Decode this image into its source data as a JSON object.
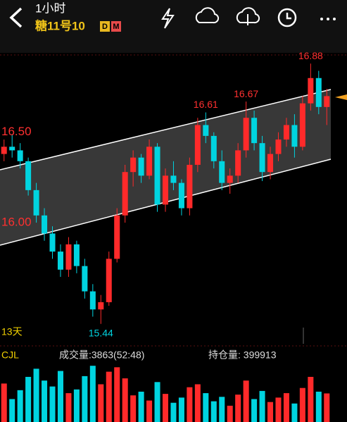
{
  "header": {
    "period": "1小时",
    "symbol": "糖11号10",
    "badges": [
      "D",
      "M"
    ]
  },
  "chart_data": {
    "type": "candlestick",
    "candles": [
      [
        16.38,
        16.46,
        16.34,
        16.42
      ],
      [
        16.42,
        16.49,
        16.36,
        16.4
      ],
      [
        16.4,
        16.44,
        16.3,
        16.34
      ],
      [
        16.34,
        16.36,
        16.15,
        16.18
      ],
      [
        16.18,
        16.22,
        16.0,
        16.04
      ],
      [
        16.04,
        16.08,
        15.9,
        15.94
      ],
      [
        15.94,
        15.98,
        15.8,
        15.84
      ],
      [
        15.84,
        15.88,
        15.7,
        15.74
      ],
      [
        15.74,
        15.92,
        15.7,
        15.88
      ],
      [
        15.88,
        15.9,
        15.72,
        15.76
      ],
      [
        15.76,
        15.8,
        15.58,
        15.62
      ],
      [
        15.62,
        15.66,
        15.48,
        15.52
      ],
      [
        15.52,
        15.6,
        15.44,
        15.56
      ],
      [
        15.56,
        15.84,
        15.54,
        15.8
      ],
      [
        15.8,
        16.08,
        15.78,
        16.04
      ],
      [
        16.04,
        16.32,
        16.0,
        16.28
      ],
      [
        16.28,
        16.4,
        16.2,
        16.36
      ],
      [
        16.36,
        16.38,
        16.22,
        16.26
      ],
      [
        16.26,
        16.46,
        16.24,
        16.42
      ],
      [
        16.42,
        16.44,
        16.06,
        16.1
      ],
      [
        16.1,
        16.3,
        16.06,
        16.26
      ],
      [
        16.26,
        16.34,
        16.18,
        16.22
      ],
      [
        16.22,
        16.24,
        16.04,
        16.08
      ],
      [
        16.08,
        16.36,
        16.04,
        16.32
      ],
      [
        16.32,
        16.58,
        16.28,
        16.54
      ],
      [
        16.54,
        16.61,
        16.44,
        16.48
      ],
      [
        16.48,
        16.5,
        16.3,
        16.34
      ],
      [
        16.34,
        16.4,
        16.18,
        16.22
      ],
      [
        16.22,
        16.3,
        16.16,
        16.26
      ],
      [
        16.26,
        16.44,
        16.22,
        16.4
      ],
      [
        16.4,
        16.67,
        16.36,
        16.58
      ],
      [
        16.58,
        16.62,
        16.4,
        16.44
      ],
      [
        16.44,
        16.48,
        16.23,
        16.28
      ],
      [
        16.28,
        16.42,
        16.24,
        16.38
      ],
      [
        16.38,
        16.5,
        16.34,
        16.46
      ],
      [
        16.46,
        16.58,
        16.42,
        16.54
      ],
      [
        16.54,
        16.6,
        16.36,
        16.42
      ],
      [
        16.42,
        16.7,
        16.4,
        16.66
      ],
      [
        16.66,
        16.88,
        16.62,
        16.8
      ],
      [
        16.8,
        16.84,
        16.6,
        16.64
      ],
      [
        16.64,
        16.74,
        16.54,
        16.7
      ]
    ],
    "ylim": [
      15.4,
      16.92
    ],
    "yticks": [
      {
        "value": 16.5,
        "label": "16.50"
      },
      {
        "value": 16.0,
        "label": "16.00"
      }
    ],
    "up_color": "#ff2a2a",
    "down_color": "#00d4e0",
    "annotations": [
      16.61,
      16.67,
      16.88,
      15.44
    ],
    "countdown": "13天",
    "volume": {
      "label": "CJL",
      "volume_text": "成交量:3863(52:48)",
      "oi_text": "持仓量: 399913",
      "values": [
        5200,
        3100,
        4300,
        6100,
        7200,
        5600,
        4800,
        6900,
        3900,
        4400,
        6200,
        7600,
        5100,
        6800,
        7400,
        5900,
        3600,
        4100,
        2900,
        5400,
        3800,
        2600,
        3300,
        4700,
        5100,
        3900,
        2800,
        3400,
        2200,
        3700,
        5600,
        3100,
        4200,
        2700,
        3300,
        3900,
        2500,
        4600,
        6100,
        4100,
        3863
      ],
      "ylim": [
        0,
        8000
      ]
    }
  }
}
